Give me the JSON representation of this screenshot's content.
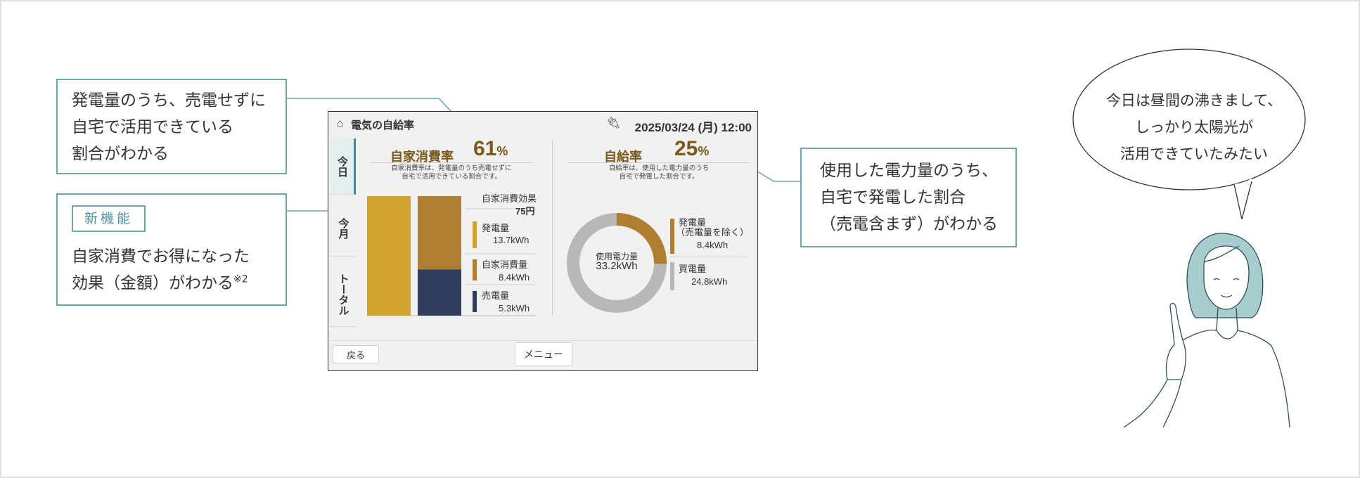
{
  "callouts": {
    "self_consumption": [
      "発電量のうち、売電せずに",
      "自宅で活用できている",
      "割合がわかる"
    ],
    "new_feature_badge": "新機能",
    "savings": [
      "自家消費でお得になった",
      "効果（金額）がわかる"
    ],
    "savings_note": "※2",
    "sufficiency": [
      "使用した電力量のうち、",
      "自宅で発電した割合",
      "（売電含まず）がわかる"
    ]
  },
  "speech": [
    "今日は昼間の沸きまして、",
    "しっかり太陽光が",
    "活用できていたみたい"
  ],
  "screen": {
    "title": "電気の自給率",
    "datetime": "2025/03/24 (月) 12:00",
    "tabs": [
      "今日",
      "今月",
      "トータル"
    ],
    "self_consumption": {
      "title": "自家消費率",
      "value": "61",
      "unit": "%",
      "note": [
        "自家消費率は、発電量のうち売電せずに",
        "自宅で活用できている割合です。"
      ],
      "effect_label": "自家消費効果",
      "effect_value": "75円",
      "generation_label": "発電量",
      "generation_value": "13.7kWh",
      "consumption_label": "自家消費量",
      "consumption_value": "8.4kWh",
      "sold_label": "売電量",
      "sold_value": "5.3kWh"
    },
    "self_sufficiency": {
      "title": "自給率",
      "value": "25",
      "unit": "%",
      "note": [
        "自給率は、使用した電力量のうち",
        "自宅で発電した割合です。"
      ],
      "donut_label": "使用電力量",
      "donut_value": "33.2kWh",
      "generation_label": "発電量",
      "generation_sub": "（売電量を除く）",
      "generation_value": "8.4kWh",
      "purchased_label": "買電量",
      "purchased_value": "24.8kWh"
    },
    "back_button": "戻る",
    "menu_button": "メニュー"
  },
  "chart_data": {
    "type": "bar",
    "categories": [
      "発電量",
      "自家消費量/売電量"
    ],
    "series": [
      {
        "name": "発電量",
        "values": [
          13.7,
          0
        ]
      },
      {
        "name": "自家消費量",
        "values": [
          0,
          8.4
        ]
      },
      {
        "name": "売電量",
        "values": [
          0,
          5.3
        ]
      }
    ],
    "donut": {
      "total": 33.2,
      "segments": [
        {
          "name": "発電量",
          "value": 8.4
        },
        {
          "name": "買電量",
          "value": 24.8
        }
      ]
    },
    "colors": {
      "generation": "#cfa32c",
      "self_consumption": "#b07e2f",
      "sold": "#2f3d5e",
      "purchased": "#b8b8b8",
      "accent": "#6aa7ad"
    }
  }
}
